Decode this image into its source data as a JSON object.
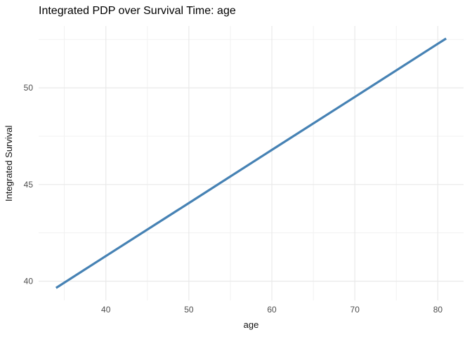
{
  "chart_data": {
    "type": "line",
    "title": "Integrated PDP over Survival Time: age",
    "xlabel": "age",
    "ylabel": "Integrated Survival",
    "xlim": [
      31.9,
      83.1
    ],
    "ylim": [
      39.0,
      53.2
    ],
    "x_ticks": {
      "values": [
        40,
        50,
        60,
        70,
        80
      ],
      "labels": [
        "40",
        "50",
        "60",
        "70",
        "80"
      ]
    },
    "y_ticks": {
      "values": [
        40,
        45,
        50
      ],
      "labels": [
        "40",
        "45",
        "50"
      ]
    },
    "x_minor_ticks": [
      35,
      45,
      55,
      65,
      75
    ],
    "y_minor_ticks": [
      42.5,
      47.5,
      52.5
    ],
    "grid": true,
    "legend": false,
    "series": [
      {
        "name": "age",
        "x": [
          34,
          40,
          50,
          60,
          70,
          80,
          81
        ],
        "y": [
          39.65,
          41.3,
          44.04,
          46.79,
          49.53,
          52.28,
          52.55
        ],
        "color": "#4682B4"
      }
    ],
    "colors": {
      "line": "#4682B4",
      "grid_major": "#E9E9E9",
      "grid_minor": "#F1F1F1",
      "tick_text": "#4D4D4D",
      "title_text": "#000000",
      "axis_title_text": "#111111",
      "background": "#FFFFFF"
    }
  }
}
